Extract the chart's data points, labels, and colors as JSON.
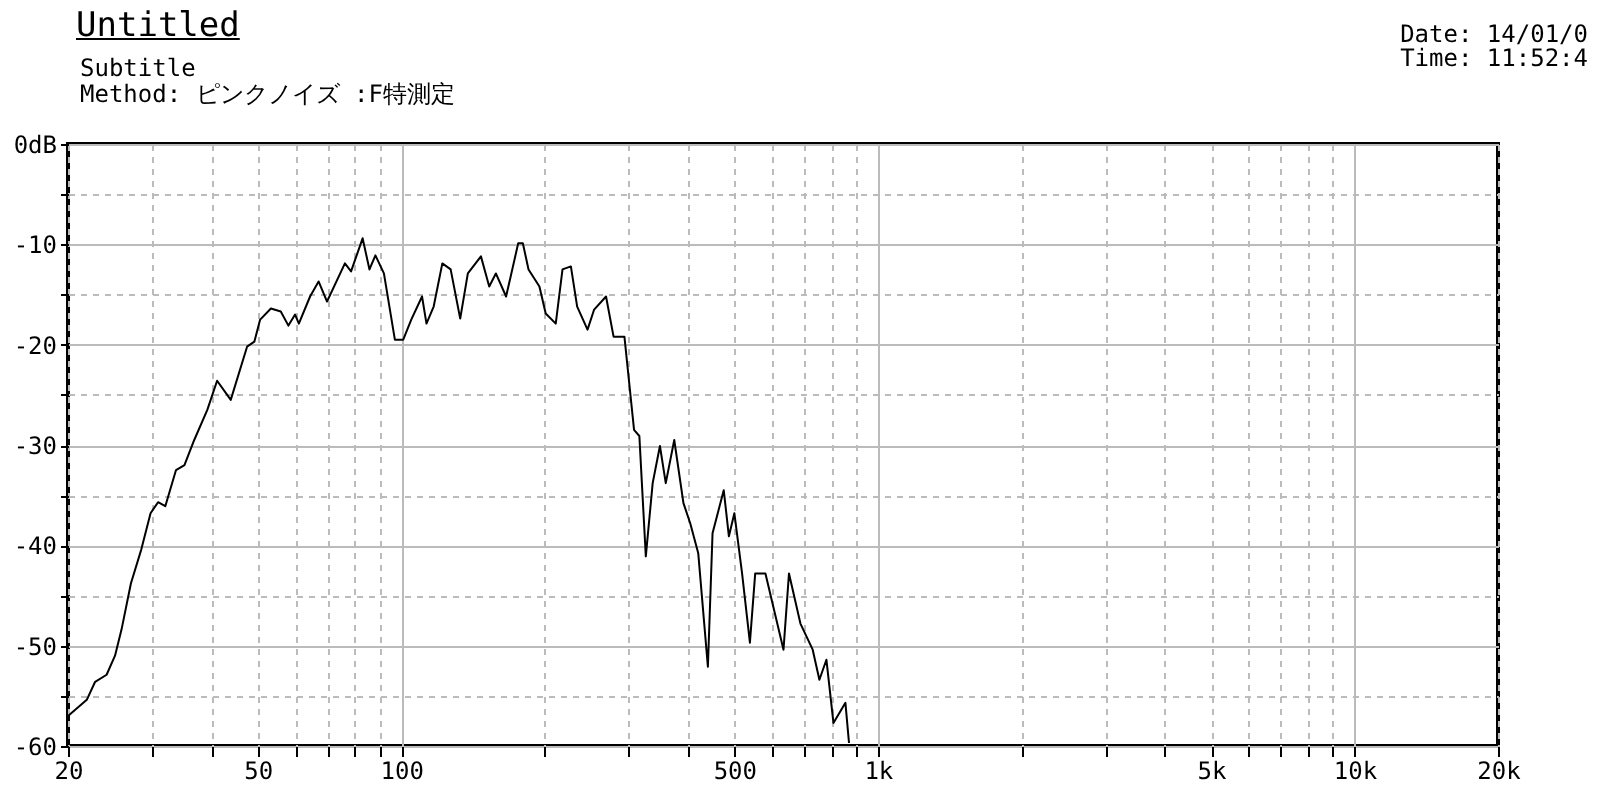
{
  "chart_data": {
    "type": "line",
    "title": "Untitled",
    "subtitle": "Subtitle",
    "annotations": [
      "Method: ピンクノイズ :F特測定",
      "Date: 14/01/0",
      "Time: 11:52:4"
    ],
    "log": "x",
    "grid": true,
    "marker": "none",
    "line_style": "solid",
    "xlim": [
      20,
      20000
    ],
    "xticks": [
      {
        "value": 20,
        "label": "20"
      },
      {
        "value": 30,
        "label": null
      },
      {
        "value": 40,
        "label": null
      },
      {
        "value": 50,
        "label": "50"
      },
      {
        "value": 60,
        "label": null
      },
      {
        "value": 70,
        "label": null
      },
      {
        "value": 80,
        "label": null
      },
      {
        "value": 90,
        "label": null
      },
      {
        "value": 100,
        "label": "100"
      },
      {
        "value": 200,
        "label": null
      },
      {
        "value": 300,
        "label": null
      },
      {
        "value": 400,
        "label": null
      },
      {
        "value": 500,
        "label": "500"
      },
      {
        "value": 600,
        "label": null
      },
      {
        "value": 700,
        "label": null
      },
      {
        "value": 800,
        "label": null
      },
      {
        "value": 900,
        "label": null
      },
      {
        "value": 1000,
        "label": "1k"
      },
      {
        "value": 2000,
        "label": null
      },
      {
        "value": 3000,
        "label": null
      },
      {
        "value": 4000,
        "label": null
      },
      {
        "value": 5000,
        "label": "5k"
      },
      {
        "value": 6000,
        "label": null
      },
      {
        "value": 7000,
        "label": null
      },
      {
        "value": 8000,
        "label": null
      },
      {
        "value": 9000,
        "label": null
      },
      {
        "value": 10000,
        "label": "10k"
      },
      {
        "value": 20000,
        "label": "20k"
      }
    ],
    "ylim": [
      -60,
      0
    ],
    "yticks": [
      {
        "value": 0,
        "label": "0dB"
      },
      {
        "value": -5,
        "label": null
      },
      {
        "value": -10,
        "label": "-10"
      },
      {
        "value": -15,
        "label": null
      },
      {
        "value": -20,
        "label": "-20"
      },
      {
        "value": -25,
        "label": null
      },
      {
        "value": -30,
        "label": "-30"
      },
      {
        "value": -35,
        "label": null
      },
      {
        "value": -40,
        "label": "-40"
      },
      {
        "value": -45,
        "label": null
      },
      {
        "value": -50,
        "label": "-50"
      },
      {
        "value": -55,
        "label": null
      },
      {
        "value": -60,
        "label": "-60"
      }
    ],
    "series": [
      {
        "color": "#000000",
        "x": [
          20,
          21.9,
          22.8,
          24.1,
          25.1,
          25.9,
          27.1,
          28.5,
          29.8,
          30.9,
          32,
          33.7,
          35.1,
          36.8,
          39.2,
          41.1,
          43.9,
          47.5,
          49.2,
          50.6,
          53.3,
          55.9,
          58,
          59.9,
          61,
          64.4,
          67.1,
          69.9,
          76.2,
          78.5,
          83,
          85.8,
          88.3,
          92,
          97,
          101,
          105,
          110.6,
          113,
          117,
          122,
          127,
          133,
          138,
          147,
          153,
          158,
          166,
          176,
          180,
          185,
          195,
          201,
          211,
          218,
          227,
          234,
          246,
          254,
          269,
          279,
          294,
          308,
          316,
          326,
          337,
          349,
          359,
          374,
          391,
          404,
          420,
          440,
          450,
          475,
          487,
          500,
          519,
          539,
          553,
          581,
          634,
          651,
          688,
          730,
          754,
          780,
          807,
          855,
          870
        ],
        "values": [
          -57,
          -55.4,
          -53.6,
          -52.9,
          -51,
          -48.4,
          -43.8,
          -40.4,
          -36.8,
          -35.7,
          -36.1,
          -32.5,
          -32,
          -29.5,
          -26.5,
          -23.6,
          -25.5,
          -20.2,
          -19.7,
          -17.5,
          -16.4,
          -16.7,
          -18.1,
          -17,
          -17.9,
          -15.2,
          -13.7,
          -15.7,
          -11.9,
          -12.7,
          -9.4,
          -12.5,
          -11.1,
          -12.9,
          -19.5,
          -19.5,
          -17.5,
          -15.2,
          -17.9,
          -16.2,
          -11.9,
          -12.5,
          -17.4,
          -12.9,
          -11.2,
          -14.2,
          -12.9,
          -15.2,
          -9.9,
          -9.9,
          -12.5,
          -14.2,
          -16.9,
          -17.9,
          -12.5,
          -12.2,
          -16.2,
          -18.5,
          -16.5,
          -15.2,
          -19.2,
          -19.2,
          -28.5,
          -29.1,
          -41.1,
          -33.8,
          -30.1,
          -33.8,
          -29.5,
          -35.8,
          -37.8,
          -40.8,
          -52.1,
          -38.8,
          -34.5,
          -39.1,
          -36.8,
          -42.8,
          -49.7,
          -42.8,
          -42.8,
          -50.4,
          -42.8,
          -47.8,
          -50.4,
          -53.4,
          -51.4,
          -57.7,
          -55.7,
          -59.7
        ]
      }
    ]
  }
}
